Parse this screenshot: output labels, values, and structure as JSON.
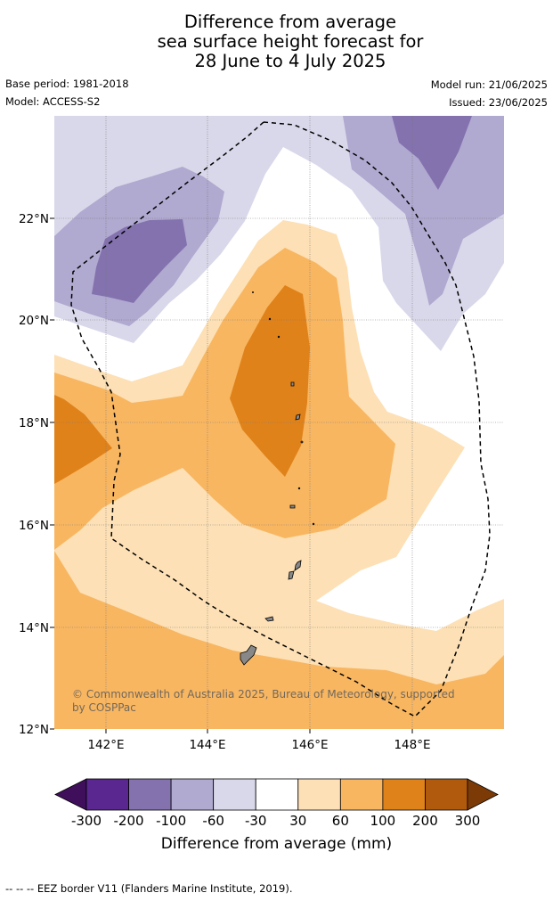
{
  "title": {
    "line1": "Difference from average",
    "line2": "sea surface height forecast for",
    "line3": "28 June to 4 July 2025"
  },
  "meta": {
    "base_period": "Base period: 1981-2018",
    "model": "Model: ACCESS-S2",
    "model_run": "Model run: 21/06/2025",
    "issued": "Issued: 23/06/2025"
  },
  "map": {
    "lon_ticks": [
      "142°E",
      "144°E",
      "146°E",
      "148°E"
    ],
    "lat_ticks": [
      "22°N",
      "20°N",
      "18°N",
      "16°N",
      "14°N",
      "12°N"
    ],
    "credit": "© Commonwealth of Australia 2025, Bureau of Meteorology, supported by COSPPac"
  },
  "colorbar": {
    "labels": [
      "-300",
      "-200",
      "-100",
      "-60",
      "-30",
      "30",
      "60",
      "100",
      "200",
      "300"
    ],
    "colors": [
      "#3f0f5b",
      "#5a2690",
      "#8372ae",
      "#b0a9d0",
      "#d9d8ea",
      "#ffffff",
      "#fde0b5",
      "#f8b661",
      "#e0821a",
      "#b15a0d",
      "#7c3a07"
    ],
    "title": "Difference from average (mm)"
  },
  "footer": "--  --  -- EEZ border V11 (Flanders Marine Institute, 2019)."
}
